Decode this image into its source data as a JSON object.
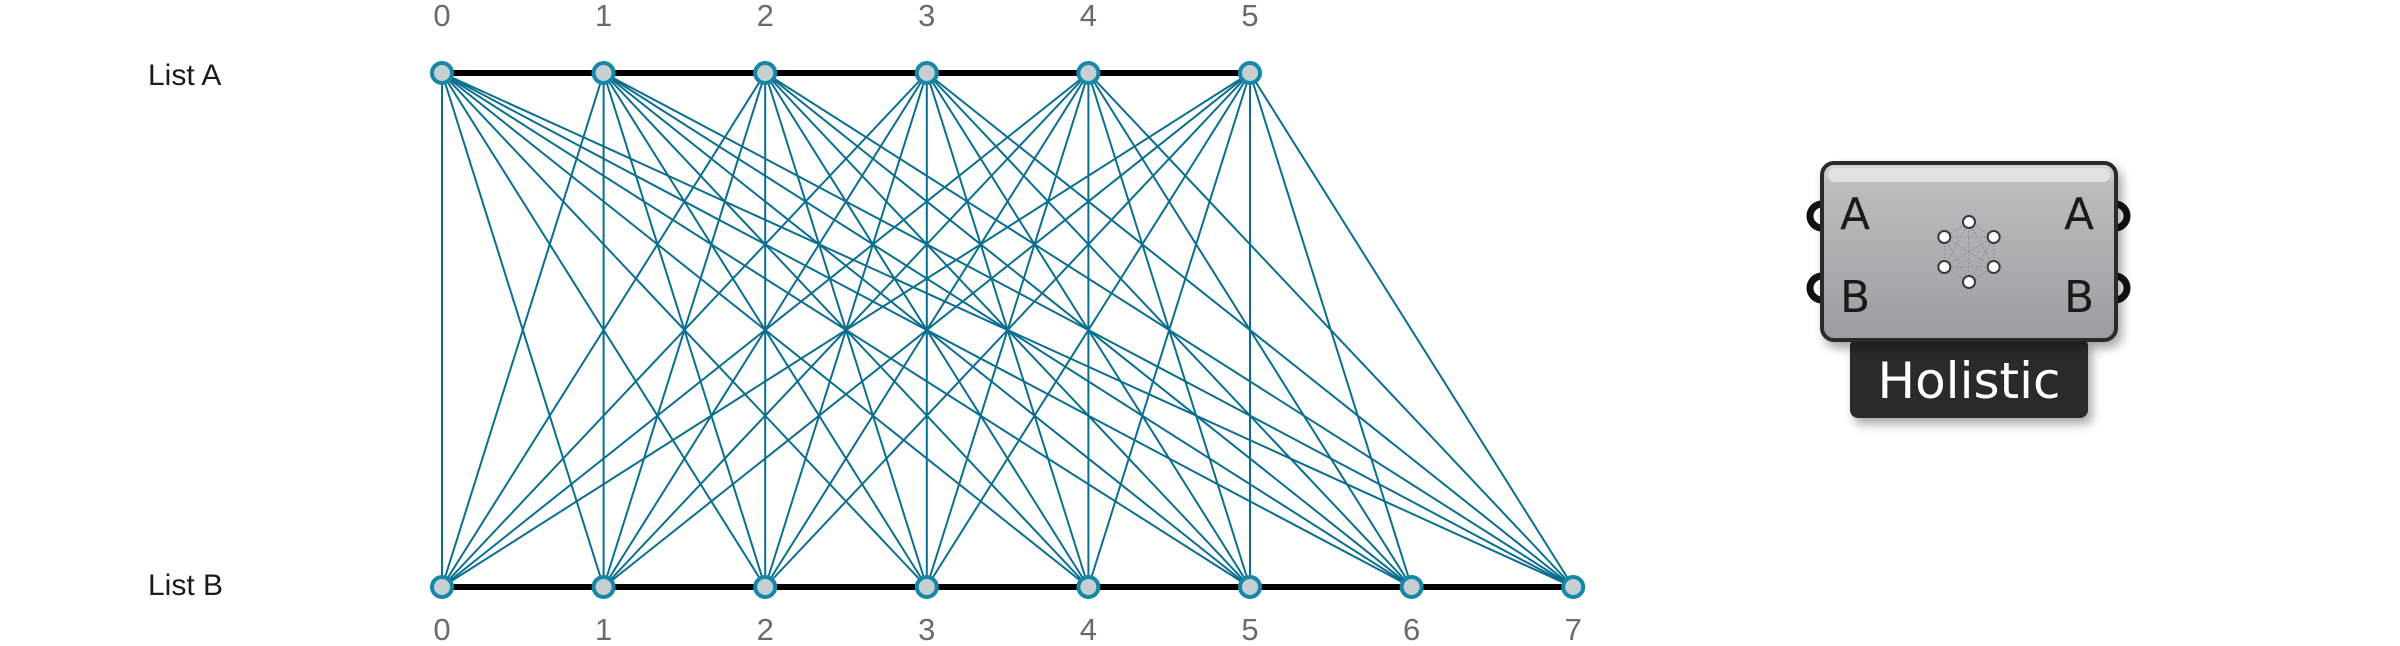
{
  "diagram": {
    "list_a": {
      "label": "List A",
      "indices": [
        "0",
        "1",
        "2",
        "3",
        "4",
        "5"
      ]
    },
    "list_b": {
      "label": "List B",
      "indices": [
        "0",
        "1",
        "2",
        "3",
        "4",
        "5",
        "6",
        "7"
      ]
    },
    "matching": "holistic",
    "colors": {
      "connection": "#0a6e8f",
      "rail": "#000000",
      "node_fill": "#c6d0d3",
      "node_stroke": "#1787a8",
      "index_text": "#6b6b6b"
    }
  },
  "component": {
    "name": "Holistic",
    "inputs": [
      "A",
      "B"
    ],
    "outputs": [
      "A",
      "B"
    ],
    "icon": "holistic-icon",
    "colors": {
      "body_top": "#c9c9cc",
      "body_bottom": "#9a9aa0",
      "label_bg": "#2b2b2b",
      "label_text": "#ffffff"
    }
  }
}
